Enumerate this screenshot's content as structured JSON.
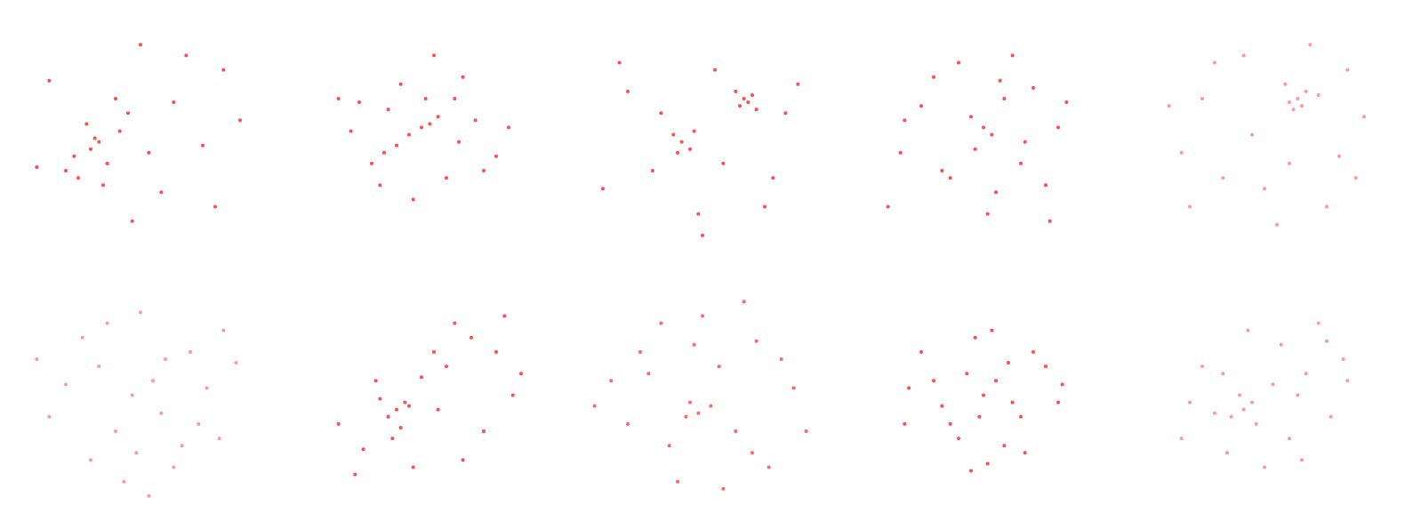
{
  "chart_data": [
    {
      "type": "scatter",
      "color": "#ff0000",
      "alpha": 0.7,
      "xlim": [
        -3,
        3
      ],
      "ylim": [
        -3,
        3
      ],
      "x": [
        -1.2,
        -0.8,
        -1.5,
        -0.5,
        -1.0,
        -1.8,
        -0.3,
        0.2,
        -1.3,
        -0.9,
        0.8,
        1.5,
        -2.2,
        2.0,
        -0.6,
        0.5,
        -1.6,
        1.1,
        -2.5,
        0.0,
        2.4,
        -1.1,
        1.8,
        -0.2
      ],
      "y": [
        -0.4,
        -0.8,
        -1.2,
        0.1,
        -0.2,
        -1.0,
        0.6,
        -0.5,
        0.3,
        -1.4,
        0.9,
        -0.3,
        1.5,
        1.8,
        1.0,
        -1.6,
        -0.6,
        2.2,
        -0.9,
        2.5,
        0.4,
        -0.1,
        -2.0,
        -2.4
      ]
    },
    {
      "type": "scatter",
      "color": "#ff0000",
      "alpha": 0.7,
      "xlim": [
        -3,
        3
      ],
      "ylim": [
        -3,
        3
      ],
      "x": [
        0.2,
        0.0,
        0.4,
        -0.3,
        -0.6,
        -0.9,
        -1.2,
        0.8,
        1.3,
        -1.5,
        1.8,
        -0.5,
        0.6,
        -2.0,
        1.0,
        0.3,
        -1.0,
        2.1,
        -0.2,
        1.5,
        -1.7,
        0.9,
        0.1,
        -0.8
      ],
      "y": [
        0.3,
        0.2,
        0.5,
        0.0,
        -0.3,
        -0.5,
        -0.8,
        1.0,
        0.4,
        0.9,
        -0.6,
        1.4,
        -1.2,
        1.0,
        1.6,
        2.2,
        -1.4,
        0.2,
        -1.8,
        -1.0,
        0.1,
        -0.2,
        1.0,
        0.7
      ]
    },
    {
      "type": "scatter",
      "color": "#ff0000",
      "alpha": 0.7,
      "xlim": [
        -3,
        3
      ],
      "ylim": [
        -3,
        3
      ],
      "x": [
        -0.5,
        -0.7,
        -0.3,
        -0.6,
        -0.2,
        1.0,
        1.2,
        0.9,
        1.1,
        0.8,
        1.3,
        -1.8,
        -2.4,
        2.0,
        0.3,
        -1.2,
        1.7,
        -0.1,
        0.5,
        -2.0,
        2.3,
        -1.0,
        0.0,
        1.5
      ],
      "y": [
        -0.2,
        0.0,
        -0.4,
        -0.5,
        0.1,
        1.0,
        1.1,
        0.8,
        0.9,
        1.2,
        0.7,
        1.2,
        -1.5,
        0.6,
        1.8,
        -1.0,
        -1.2,
        -2.2,
        -0.8,
        2.0,
        1.4,
        0.6,
        -2.8,
        -2.0
      ]
    },
    {
      "type": "scatter",
      "color": "#ff0000",
      "alpha": 0.7,
      "xlim": [
        -3,
        3
      ],
      "ylim": [
        -3,
        3
      ],
      "x": [
        0.0,
        0.2,
        -0.3,
        0.5,
        -1.5,
        1.2,
        -2.0,
        1.8,
        -0.8,
        0.9,
        -1.2,
        0.3,
        0.1,
        1.5,
        -0.6,
        2.0,
        -1.9,
        0.7,
        -0.2,
        1.0,
        -1.0,
        0.4,
        -2.3,
        1.6
      ],
      "y": [
        0.2,
        0.0,
        0.5,
        1.0,
        0.8,
        1.3,
        -0.5,
        0.2,
        -1.2,
        -0.8,
        1.6,
        -1.6,
        -2.2,
        -1.4,
        2.0,
        0.9,
        0.4,
        2.2,
        -0.4,
        -0.2,
        -1.0,
        1.5,
        -2.0,
        -2.4
      ]
    },
    {
      "type": "scatter",
      "color": "#ff0000",
      "alpha": 0.4,
      "xlim": [
        -3,
        3
      ],
      "ylim": [
        -3,
        3
      ],
      "x": [
        0.8,
        0.6,
        1.0,
        0.7,
        0.9,
        0.5,
        1.3,
        -1.5,
        -2.0,
        2.0,
        -0.5,
        1.8,
        0.0,
        -1.0,
        1.5,
        2.4,
        -2.3,
        0.3,
        -1.2,
        1.1,
        -0.3,
        2.2,
        -1.8,
        0.6
      ],
      "y": [
        1.0,
        0.9,
        1.2,
        0.7,
        0.8,
        1.4,
        1.1,
        1.0,
        -0.5,
        1.8,
        2.2,
        -0.6,
        -1.5,
        -1.2,
        -2.0,
        0.5,
        0.8,
        -2.5,
        2.0,
        2.5,
        0.0,
        -1.2,
        -2.0,
        -0.8
      ]
    },
    {
      "type": "scatter",
      "color": "#ff0000",
      "alpha": 0.4,
      "xlim": [
        -3,
        3
      ],
      "ylim": [
        -3,
        3
      ],
      "x": [
        -0.2,
        0.3,
        -1.0,
        1.2,
        -1.8,
        2.0,
        0.5,
        -0.6,
        1.0,
        -2.2,
        0.0,
        1.6,
        -1.4,
        0.8,
        -0.4,
        2.3,
        -2.5,
        0.2,
        1.4,
        -1.2,
        0.6,
        -0.8,
        1.9,
        -0.1
      ],
      "y": [
        0.0,
        0.4,
        0.8,
        1.2,
        0.3,
        1.8,
        -0.5,
        -1.0,
        -1.4,
        -0.6,
        2.3,
        0.2,
        1.6,
        -2.0,
        -2.4,
        0.9,
        1.0,
        -2.8,
        -0.8,
        -1.8,
        1.0,
        2.0,
        -1.2,
        -1.6
      ]
    },
    {
      "type": "scatter",
      "color": "#ff0000",
      "alpha": 0.7,
      "xlim": [
        -3,
        3
      ],
      "ylim": [
        -3,
        3
      ],
      "x": [
        -0.6,
        -0.4,
        -0.8,
        -0.5,
        -0.3,
        -1.0,
        -0.7,
        0.0,
        -1.4,
        0.6,
        1.2,
        1.8,
        2.2,
        -2.0,
        0.8,
        1.5,
        -0.2,
        2.0,
        0.3,
        -1.6,
        1.0,
        2.4,
        -1.1,
        0.4
      ],
      "y": [
        -0.4,
        -0.2,
        -0.6,
        -0.9,
        -0.3,
        -0.1,
        -1.2,
        0.5,
        -1.5,
        0.8,
        1.6,
        1.2,
        0.0,
        -0.8,
        2.0,
        -1.0,
        -2.0,
        2.2,
        1.2,
        -2.2,
        -1.8,
        0.6,
        0.4,
        -0.4
      ]
    },
    {
      "type": "scatter",
      "color": "#ff0000",
      "alpha": 0.6,
      "xlim": [
        -3,
        3
      ],
      "ylim": [
        -3,
        3
      ],
      "x": [
        -0.3,
        -0.1,
        -0.4,
        0.2,
        -1.5,
        1.3,
        -2.2,
        2.2,
        -0.8,
        0.8,
        -1.8,
        1.6,
        0.0,
        -1.0,
        1.0,
        -2.6,
        2.5,
        0.5,
        -0.6,
        1.9,
        -1.3,
        0.4,
        -0.2,
        1.2
      ],
      "y": [
        -0.2,
        -0.5,
        -0.6,
        -0.3,
        1.2,
        1.5,
        0.4,
        0.2,
        -1.4,
        -1.0,
        -0.8,
        -2.0,
        2.2,
        2.0,
        2.6,
        -0.3,
        -1.0,
        -2.6,
        -2.4,
        1.0,
        0.6,
        0.8,
        1.4,
        -1.6
      ]
    },
    {
      "type": "scatter",
      "color": "#ff0000",
      "alpha": 0.7,
      "xlim": [
        -3,
        3
      ],
      "ylim": [
        -3,
        3
      ],
      "x": [
        0.0,
        0.3,
        -0.4,
        0.6,
        -1.2,
        1.2,
        -1.8,
        1.8,
        -0.8,
        0.9,
        -0.2,
        0.5,
        -1.5,
        1.5,
        0.1,
        -0.6,
        1.0,
        -1.0,
        0.2,
        -1.9,
        1.9,
        -0.3,
        0.7,
        -0.1
      ],
      "y": [
        0.0,
        0.4,
        0.6,
        0.9,
        0.4,
        1.2,
        0.2,
        -0.2,
        -0.8,
        -0.6,
        1.6,
        -1.4,
        1.2,
        0.8,
        -1.9,
        -1.2,
        -1.6,
        -0.3,
        1.8,
        -0.8,
        0.3,
        -2.1,
        -0.2,
        -0.6
      ]
    },
    {
      "type": "scatter",
      "color": "#ff0000",
      "alpha": 0.4,
      "xlim": [
        -3,
        3
      ],
      "ylim": [
        -3,
        3
      ],
      "x": [
        -0.5,
        -0.3,
        -0.8,
        -0.2,
        -0.6,
        -1.2,
        0.2,
        0.6,
        1.0,
        1.5,
        1.9,
        -1.8,
        -0.9,
        0.4,
        1.3,
        -1.5,
        0.9,
        2.0,
        -0.4,
        0.0,
        1.6,
        -2.0,
        0.8,
        -1.0
      ],
      "y": [
        -0.4,
        -0.2,
        -0.6,
        -0.8,
        0.0,
        -0.5,
        0.3,
        -1.2,
        0.6,
        1.5,
        1.0,
        -0.2,
        -1.6,
        1.4,
        2.0,
        0.8,
        -1.8,
        0.4,
        1.8,
        -2.0,
        -0.6,
        -1.2,
        0.0,
        0.6
      ]
    }
  ]
}
